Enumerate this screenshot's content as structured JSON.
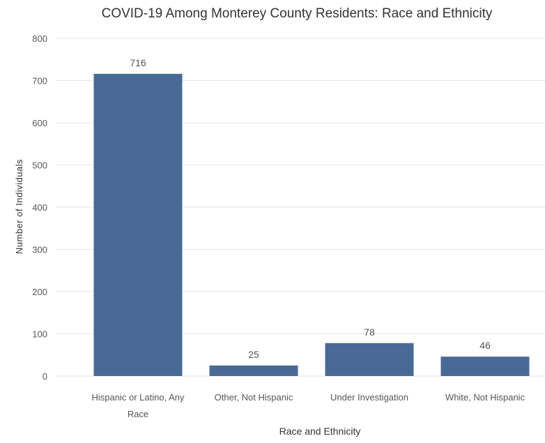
{
  "chart_data": {
    "type": "bar",
    "title": "COVID-19 Among Monterey County Residents: Race and Ethnicity",
    "xlabel": "Race and Ethnicity",
    "ylabel": "Number of Individuals",
    "categories": [
      "Hispanic or Latino, Any Race",
      "Other, Not Hispanic",
      "Under Investigation",
      "White, Not Hispanic"
    ],
    "values": [
      716,
      25,
      78,
      46
    ],
    "data_labels": [
      "716",
      "25",
      "78",
      "46"
    ],
    "y_ticks": [
      0,
      100,
      200,
      300,
      400,
      500,
      600,
      700,
      800
    ],
    "y_tick_labels": [
      "0",
      "100",
      "200",
      "300",
      "400",
      "500",
      "600",
      "700",
      "800"
    ],
    "ylim": [
      0,
      800
    ],
    "grid": true,
    "legend": "none",
    "bar_color": "#4a6a96"
  }
}
